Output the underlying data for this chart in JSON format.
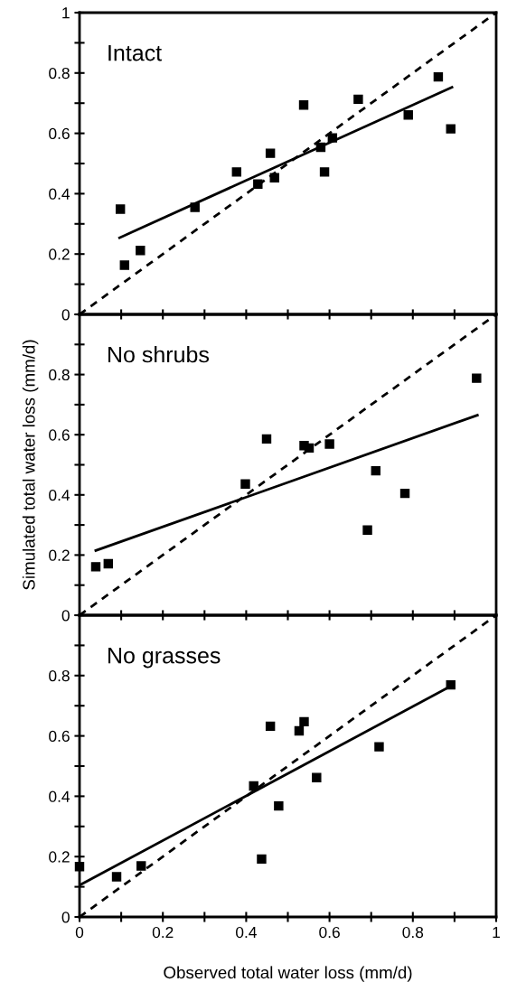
{
  "chart_data": [
    {
      "type": "scatter",
      "annotations": [
        "Intact"
      ],
      "xlim": [
        0,
        1
      ],
      "ylim": [
        0,
        1
      ],
      "tick_labels": "y",
      "grid": false,
      "legend": false,
      "xticks": [
        0,
        0.1,
        0.2,
        0.3,
        0.4,
        0.5,
        0.6,
        0.7,
        0.8,
        0.9,
        1
      ],
      "yticks": [
        0,
        {
          "value": 0.1,
          "label": null
        },
        0.2,
        {
          "value": 0.3,
          "label": null
        },
        0.4,
        {
          "value": 0.5,
          "label": null
        },
        0.6,
        {
          "value": 0.7,
          "label": null
        },
        0.8,
        {
          "value": 0.9,
          "label": null
        },
        1
      ],
      "series": [
        {
          "type": "scatter",
          "marker": "square",
          "color": "#000000",
          "x": [
            0.098,
            0.108,
            0.146,
            0.277,
            0.377,
            0.428,
            0.458,
            0.468,
            0.538,
            0.579,
            0.588,
            0.607,
            0.669,
            0.789,
            0.861,
            0.891
          ],
          "values": [
            0.349,
            0.163,
            0.212,
            0.355,
            0.472,
            0.432,
            0.534,
            0.453,
            0.694,
            0.554,
            0.472,
            0.585,
            0.713,
            0.661,
            0.787,
            0.615
          ]
        },
        {
          "type": "line",
          "line_style": "solid",
          "color": "#000000",
          "x": [
            0.096,
            0.894
          ],
          "values": [
            0.254,
            0.753
          ]
        },
        {
          "type": "line",
          "line_style": "dashed",
          "color": "#000000",
          "x": [
            0,
            1
          ],
          "values": [
            0,
            1
          ]
        }
      ]
    },
    {
      "type": "scatter",
      "annotations": [
        "No shrubs"
      ],
      "ylabel": "Simulated total water loss (mm/d)",
      "xlim": [
        0,
        1
      ],
      "ylim": [
        0,
        1
      ],
      "tick_labels": "y",
      "grid": false,
      "legend": false,
      "xticks": [
        0,
        0.1,
        0.2,
        0.3,
        0.4,
        0.5,
        0.6,
        0.7,
        0.8,
        0.9,
        1
      ],
      "yticks": [
        0,
        {
          "value": 0.1,
          "label": null
        },
        0.2,
        {
          "value": 0.3,
          "label": null
        },
        0.4,
        {
          "value": 0.5,
          "label": null
        },
        0.6,
        {
          "value": 0.7,
          "label": null
        },
        0.8,
        {
          "value": 0.9,
          "label": null
        },
        {
          "value": 1,
          "label": null
        }
      ],
      "series": [
        {
          "type": "scatter",
          "marker": "square",
          "color": "#000000",
          "x": [
            0.039,
            0.069,
            0.398,
            0.449,
            0.539,
            0.551,
            0.6,
            0.711,
            0.691,
            0.781,
            0.953
          ],
          "values": [
            0.161,
            0.171,
            0.436,
            0.586,
            0.564,
            0.556,
            0.569,
            0.48,
            0.283,
            0.405,
            0.788
          ]
        },
        {
          "type": "line",
          "line_style": "solid",
          "color": "#000000",
          "x": [
            0.039,
            0.955
          ],
          "values": [
            0.215,
            0.665
          ]
        },
        {
          "type": "line",
          "line_style": "dashed",
          "color": "#000000",
          "x": [
            0,
            1
          ],
          "values": [
            0,
            1
          ]
        }
      ]
    },
    {
      "type": "scatter",
      "annotations": [
        "No grasses"
      ],
      "xlabel": "Observed total water loss (mm/d)",
      "xlim": [
        0,
        1
      ],
      "ylim": [
        0,
        1
      ],
      "grid": false,
      "legend": false,
      "xticks": [
        0,
        {
          "value": 0.1,
          "label": null
        },
        0.2,
        {
          "value": 0.3,
          "label": null
        },
        0.4,
        {
          "value": 0.5,
          "label": null
        },
        0.6,
        {
          "value": 0.7,
          "label": null
        },
        0.8,
        {
          "value": 0.9,
          "label": null
        },
        1
      ],
      "yticks": [
        0,
        {
          "value": 0.1,
          "label": null
        },
        0.2,
        {
          "value": 0.3,
          "label": null
        },
        0.4,
        {
          "value": 0.5,
          "label": null
        },
        0.6,
        {
          "value": 0.7,
          "label": null
        },
        0.8,
        {
          "value": 0.9,
          "label": null
        },
        {
          "value": 1,
          "label": null
        }
      ],
      "series": [
        {
          "type": "scatter",
          "marker": "square",
          "color": "#000000",
          "x": [
            0,
            0.089,
            0.148,
            0.418,
            0.437,
            0.458,
            0.478,
            0.527,
            0.539,
            0.569,
            0.719,
            0.891
          ],
          "values": [
            0.167,
            0.133,
            0.169,
            0.434,
            0.192,
            0.632,
            0.368,
            0.617,
            0.647,
            0.462,
            0.564,
            0.769
          ]
        },
        {
          "type": "line",
          "line_style": "solid",
          "color": "#000000",
          "x": [
            0,
            0.891
          ],
          "values": [
            0.105,
            0.765
          ]
        },
        {
          "type": "line",
          "line_style": "dashed",
          "color": "#000000",
          "x": [
            0,
            1
          ],
          "values": [
            0,
            1
          ]
        }
      ]
    }
  ]
}
